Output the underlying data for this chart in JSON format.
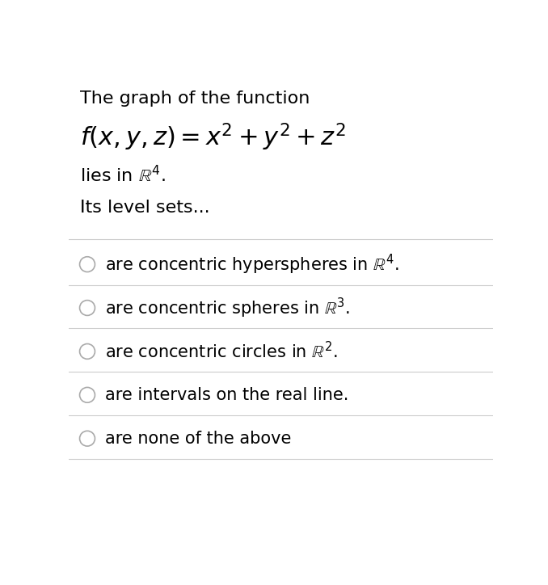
{
  "background_color": "#ffffff",
  "text_color": "#000000",
  "line_color": "#cccccc",
  "circle_color": "#aaaaaa",
  "options": [
    "are concentric hyperspheres in $\\mathbb{R}^4$.",
    "are concentric spheres in $\\mathbb{R}^3$.",
    "are concentric circles in $\\mathbb{R}^2$.",
    "are intervals on the real line.",
    "are none of the above"
  ],
  "figsize": [
    6.78,
    7.24
  ],
  "dpi": 100
}
